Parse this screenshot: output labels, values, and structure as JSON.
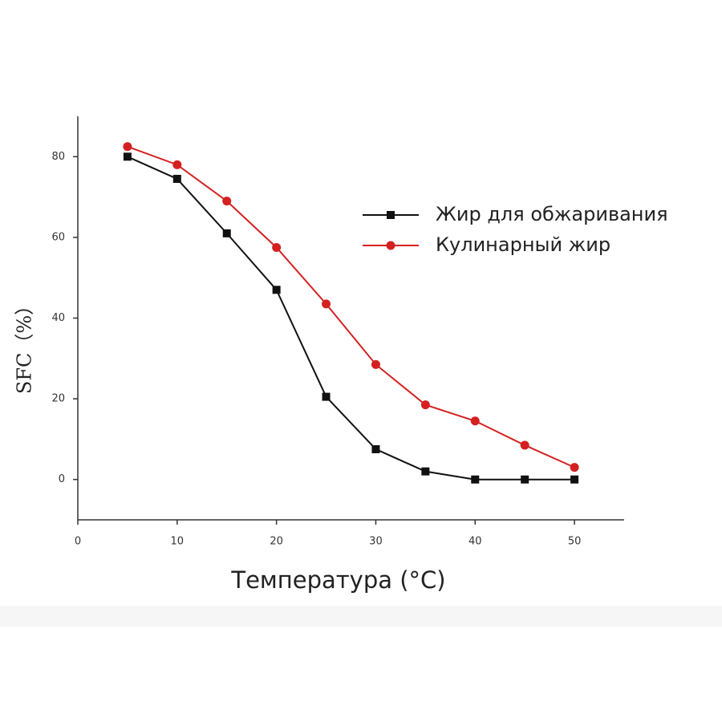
{
  "chart_data": {
    "type": "line",
    "x_label": "Температура (°C)",
    "y_label": "SFC（%）",
    "x": [
      5,
      10,
      15,
      20,
      25,
      30,
      35,
      40,
      45,
      50
    ],
    "series": [
      {
        "name": "Жир для обжаривания",
        "color": "#111111",
        "marker": "square",
        "values": [
          80,
          74.5,
          61,
          47,
          20.5,
          7.5,
          2,
          0,
          0,
          0
        ]
      },
      {
        "name": "Кулинарный жир",
        "color": "#d42020",
        "marker": "circle",
        "values": [
          82.5,
          78,
          69,
          57.5,
          43.5,
          28.5,
          18.5,
          14.5,
          8.5,
          3
        ]
      }
    ],
    "xlim": [
      0,
      55
    ],
    "xticks": [
      0,
      10,
      20,
      30,
      40,
      50
    ],
    "ylim": [
      -10,
      90
    ],
    "yticks": [
      0,
      20,
      40,
      60,
      80
    ],
    "grid": false
  }
}
